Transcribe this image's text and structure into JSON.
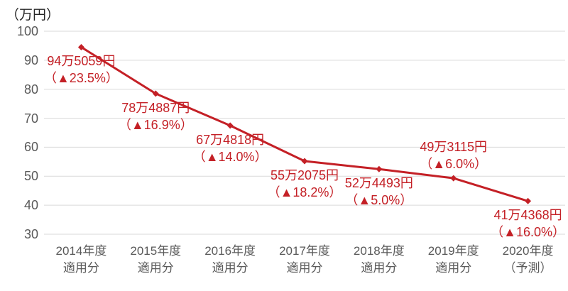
{
  "chart_data": {
    "type": "line",
    "title": "",
    "xlabel": "",
    "ylabel": "（万円）",
    "ylim": [
      30,
      100
    ],
    "yticks": [
      100,
      90,
      80,
      70,
      60,
      50,
      40,
      30
    ],
    "grid": true,
    "legend": false,
    "marker": "diamond",
    "series_color": "#c42026",
    "colors": {
      "line": "#c42026",
      "data_label_text": "#c42026",
      "axis_text": "#595959",
      "gridline": "#d9d9d9",
      "unit_label_text": "#262626"
    },
    "categories": [
      "2014年度 適用分",
      "2015年度 適用分",
      "2016年度 適用分",
      "2017年度 適用分",
      "2018年度 適用分",
      "2019年度 適用分",
      "2020年度（予測）"
    ],
    "values": [
      94.5059,
      78.4887,
      67.4818,
      55.2075,
      52.4493,
      49.3115,
      41.4368
    ],
    "points": [
      {
        "category": [
          "2014年度",
          "適用分"
        ],
        "value": 94.5059,
        "amount_label": "94万5059円",
        "change_label": "（▲23.5%）",
        "label_position": "below"
      },
      {
        "category": [
          "2015年度",
          "適用分"
        ],
        "value": 78.4887,
        "amount_label": "78万4887円",
        "change_label": "（▲16.9%）",
        "label_position": "below"
      },
      {
        "category": [
          "2016年度",
          "適用分"
        ],
        "value": 67.4818,
        "amount_label": "67万4818円",
        "change_label": "（▲14.0%）",
        "label_position": "below"
      },
      {
        "category": [
          "2017年度",
          "適用分"
        ],
        "value": 55.2075,
        "amount_label": "55万2075円",
        "change_label": "（▲18.2%）",
        "label_position": "below"
      },
      {
        "category": [
          "2018年度",
          "適用分"
        ],
        "value": 52.4493,
        "amount_label": "52万4493円",
        "change_label": "（▲5.0%）",
        "label_position": "below"
      },
      {
        "category": [
          "2019年度",
          "適用分"
        ],
        "value": 49.3115,
        "amount_label": "49万3115円",
        "change_label": "（▲6.0%）",
        "label_position": "above"
      },
      {
        "category": [
          "2020年度",
          "（予測）"
        ],
        "value": 41.4368,
        "amount_label": "41万4368円",
        "change_label": "（▲16.0%）",
        "label_position": "below"
      }
    ]
  }
}
